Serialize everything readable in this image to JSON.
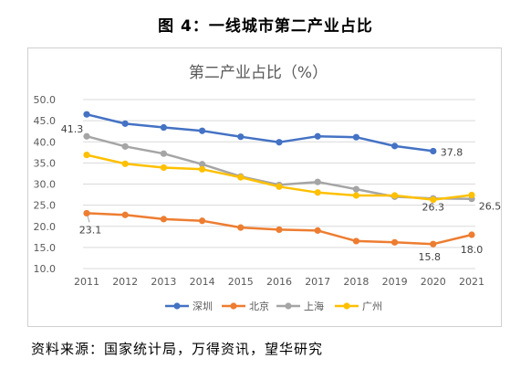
{
  "figure_title": "图 4：一线城市第二产业占比",
  "source_note": "资料来源：国家统计局，万得资讯，望华研究",
  "chart_data": {
    "type": "line",
    "title": "第二产业占比（%）",
    "categories": [
      "2011",
      "2012",
      "2013",
      "2014",
      "2015",
      "2016",
      "2017",
      "2018",
      "2019",
      "2020",
      "2021"
    ],
    "yticks": [
      "50.0",
      "45.0",
      "40.0",
      "35.0",
      "30.0",
      "25.0",
      "20.0",
      "15.0",
      "10.0"
    ],
    "ylim": [
      10,
      50
    ],
    "grid": true,
    "legend_position": "bottom",
    "series": [
      {
        "name": "深圳",
        "color": "#4472C4",
        "values": [
          46.5,
          44.3,
          43.4,
          42.6,
          41.2,
          39.9,
          41.3,
          41.1,
          39.0,
          37.8,
          null
        ]
      },
      {
        "name": "北京",
        "color": "#ED7D31",
        "values": [
          23.1,
          22.7,
          21.7,
          21.3,
          19.7,
          19.2,
          19.0,
          16.5,
          16.2,
          15.8,
          18.0
        ]
      },
      {
        "name": "上海",
        "color": "#A5A5A5",
        "values": [
          41.3,
          38.9,
          37.2,
          34.7,
          31.8,
          29.8,
          30.5,
          28.8,
          27.0,
          26.6,
          26.5
        ]
      },
      {
        "name": "广州",
        "color": "#FFC000",
        "values": [
          36.9,
          34.8,
          33.9,
          33.5,
          31.6,
          29.4,
          28.0,
          27.3,
          27.3,
          26.3,
          27.4
        ]
      }
    ],
    "data_labels": [
      {
        "series": 0,
        "index": 9,
        "text": "37.8"
      },
      {
        "series": 1,
        "index": 0,
        "text": "23.1"
      },
      {
        "series": 1,
        "index": 9,
        "text": "15.8"
      },
      {
        "series": 1,
        "index": 10,
        "text": "18.0"
      },
      {
        "series": 2,
        "index": 0,
        "text": "41.3"
      },
      {
        "series": 2,
        "index": 10,
        "text": "26.5"
      },
      {
        "series": 3,
        "index": 9,
        "text": "26.3"
      }
    ]
  }
}
